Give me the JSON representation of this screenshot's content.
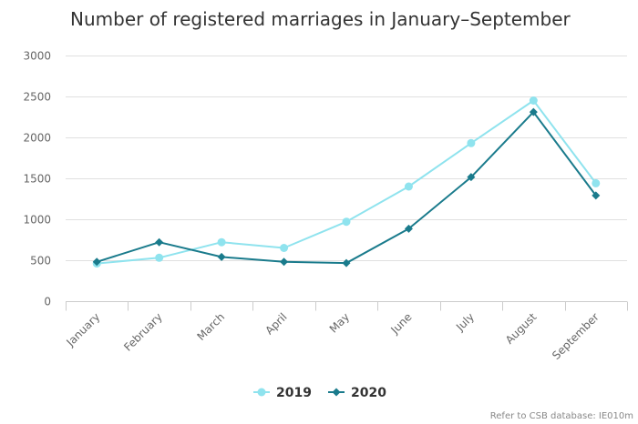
{
  "chart_data": {
    "type": "line",
    "title": "Number of registered marriages in January–September",
    "xlabel": "",
    "ylabel": "",
    "categories": [
      "January",
      "February",
      "March",
      "April",
      "May",
      "June",
      "July",
      "August",
      "September"
    ],
    "ylim": [
      0,
      3000
    ],
    "yticks": [
      0,
      500,
      1000,
      1500,
      2000,
      2500,
      3000
    ],
    "grid": true,
    "legend": "bottom-center",
    "series": [
      {
        "name": "2019",
        "color": "#8fe3ee",
        "marker": "circle",
        "values": [
          460,
          530,
          720,
          650,
          970,
          1400,
          1930,
          2450,
          1440
        ]
      },
      {
        "name": "2020",
        "color": "#1a7b8c",
        "marker": "diamond",
        "values": [
          480,
          720,
          540,
          480,
          465,
          885,
          1515,
          2310,
          1290
        ]
      }
    ]
  },
  "credit": "Refer to CSB database: IE010m"
}
